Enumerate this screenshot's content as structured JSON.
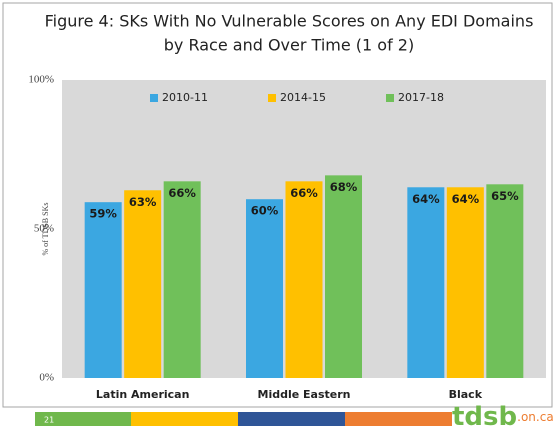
{
  "chart_data": {
    "type": "bar",
    "title": [
      "Figure 4: SKs With No Vulnerable Scores on Any EDI Domains",
      "by Race and Over Time (1 of 2)"
    ],
    "y_label": "% of TDSB SKs",
    "categories": [
      "Latin American",
      "Middle Eastern",
      "Black"
    ],
    "series": [
      {
        "name": "2010-11",
        "color": "#3ba7e1",
        "values": [
          59,
          60,
          64
        ],
        "value_labels": [
          "59%",
          "60%",
          "64%"
        ]
      },
      {
        "name": "2014-15",
        "color": "#ffc000",
        "values": [
          63,
          66,
          64
        ],
        "value_labels": [
          "63%",
          "66%",
          "64%"
        ]
      },
      {
        "name": "2017-18",
        "color": "#70c05a",
        "values": [
          66,
          68,
          65
        ],
        "value_labels": [
          "66%",
          "68%",
          "65%"
        ]
      }
    ],
    "ylim": [
      0,
      100
    ],
    "yticks": [
      {
        "value": 0,
        "label": "0%"
      },
      {
        "value": 50,
        "label": "50%"
      },
      {
        "value": 100,
        "label": "100%"
      }
    ],
    "grid": false,
    "legend": "top"
  },
  "footer": {
    "page": "21",
    "logo": "tdsb",
    "logo_suffix": ".on.ca"
  }
}
